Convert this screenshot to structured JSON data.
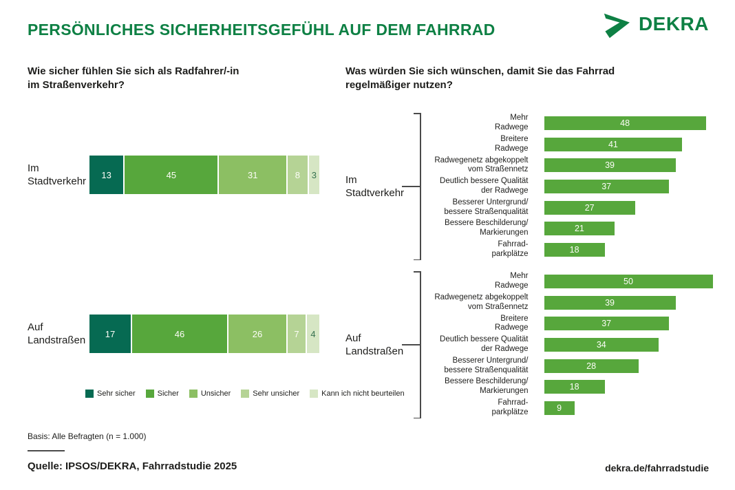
{
  "header": {
    "title": "PERSÖNLICHES SICHERHEITSGEFÜHL AUF DEM FAHRRAD",
    "logo_text": "DEKRA"
  },
  "colors": {
    "dekra_green": "#0e8044",
    "bar_green": "#57a73c",
    "scale": [
      "#066a52",
      "#57a73c",
      "#8cbf63",
      "#b5d395",
      "#d6e6c4"
    ],
    "text_dark": "#1d1d1b",
    "line_gray": "#4a4a4a"
  },
  "chart_data": [
    {
      "type": "bar",
      "variant": "stacked-horizontal",
      "title": "Wie sicher fühlen Sie sich als Radfahrer/-in\nim Straßenverkehr?",
      "categories": [
        "Im\nStadtverkehr",
        "Auf\nLandstraßen"
      ],
      "series": [
        {
          "name": "Sehr sicher",
          "values": [
            13,
            17
          ]
        },
        {
          "name": "Sicher",
          "values": [
            45,
            46
          ]
        },
        {
          "name": "Unsicher",
          "values": [
            31,
            26
          ]
        },
        {
          "name": "Sehr unsicher",
          "values": [
            8,
            7
          ]
        },
        {
          "name": "Kann ich nicht beurteilen",
          "values": [
            3,
            4
          ]
        }
      ],
      "legend": [
        "Sehr sicher",
        "Sicher",
        "Unsicher",
        "Sehr unsicher",
        "Kann ich nicht beurteilen"
      ],
      "legend_position": "bottom",
      "xlim": [
        0,
        100
      ],
      "unit": "percent",
      "grid": false
    },
    {
      "type": "bar",
      "variant": "grouped-horizontal",
      "title": "Was würden Sie sich wünschen, damit Sie das Fahrrad\nregelmäßiger nutzen?",
      "xlim": [
        0,
        55
      ],
      "unit": "percent",
      "grid": false,
      "groups": [
        {
          "label": "Im\nStadtverkehr",
          "categories": [
            "Mehr\nRadwege",
            "Breitere\nRadwege",
            "Radwegenetz abgekoppelt\nvom Straßennetz",
            "Deutlich bessere Qualität\nder Radwege",
            "Besserer Untergrund/\nbessere Straßenqualität",
            "Bessere Beschilderung/\nMarkierungen",
            "Fahrrad-\nparkplätze"
          ],
          "values": [
            48,
            41,
            39,
            37,
            27,
            21,
            18
          ]
        },
        {
          "label": "Auf\nLandstraßen",
          "categories": [
            "Mehr\nRadwege",
            "Radwegenetz abgekoppelt\nvom Straßennetz",
            "Breitere\nRadwege",
            "Deutlich bessere Qualität\nder Radwege",
            "Besserer Untergrund/\nbessere Straßenqualität",
            "Bessere Beschilderung/\nMarkierungen",
            "Fahrrad-\nparkplätze"
          ],
          "values": [
            50,
            39,
            37,
            34,
            28,
            18,
            9
          ]
        }
      ]
    }
  ],
  "footer": {
    "basis": "Basis: Alle Befragten (n = 1.000)",
    "source": "Quelle: IPSOS/DEKRA, Fahrradstudie 2025",
    "url": "dekra.de/fahrradstudie"
  }
}
